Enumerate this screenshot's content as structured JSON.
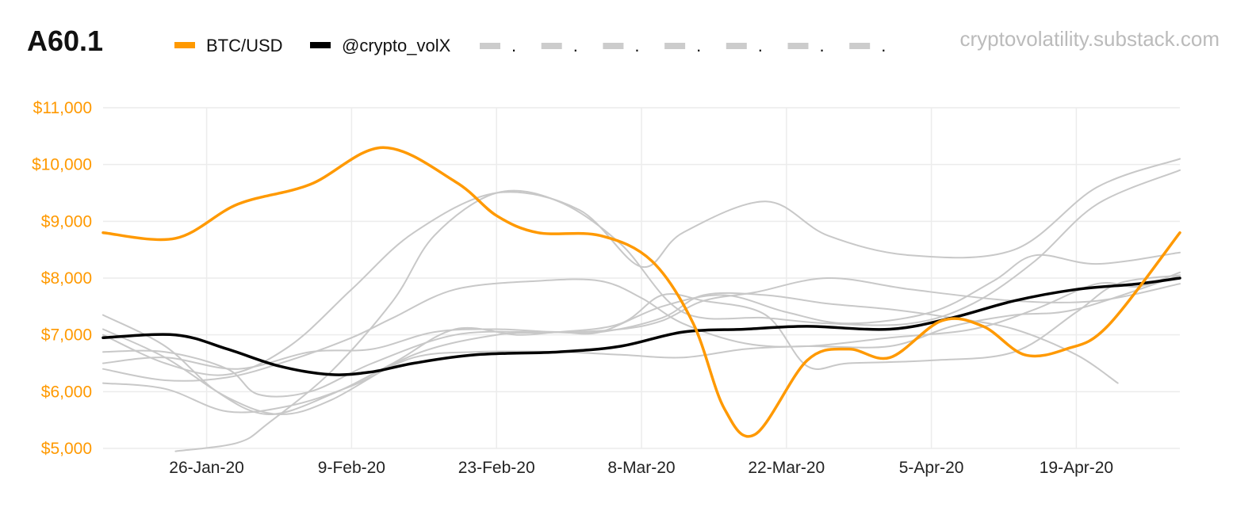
{
  "chart_data": {
    "type": "line",
    "title": "A60.1",
    "source": "cryptovolatility.substack.com",
    "x_range": [
      0,
      104
    ],
    "ylim": [
      5000,
      11000
    ],
    "yticks": [
      5000,
      6000,
      7000,
      8000,
      9000,
      10000,
      11000
    ],
    "ytick_labels": [
      "$5,000",
      "$6,000",
      "$7,000",
      "$8,000",
      "$9,000",
      "$10,000",
      "$11,000"
    ],
    "xticks": [
      {
        "x": 10,
        "label": "26-Jan-20"
      },
      {
        "x": 24,
        "label": "9-Feb-20"
      },
      {
        "x": 38,
        "label": "23-Feb-20"
      },
      {
        "x": 52,
        "label": "8-Mar-20"
      },
      {
        "x": 66,
        "label": "22-Mar-20"
      },
      {
        "x": 80,
        "label": "5-Apr-20"
      },
      {
        "x": 94,
        "label": "19-Apr-20"
      }
    ],
    "grid": true,
    "legend": [
      "BTC/USD",
      "@crypto_volX",
      ".",
      ".",
      ".",
      ".",
      ".",
      ".",
      "."
    ],
    "series": [
      {
        "name": "grey-1",
        "role": "other",
        "color": "#c8c8c8",
        "points": [
          [
            0,
            6500
          ],
          [
            6,
            6600
          ],
          [
            13,
            6400
          ],
          [
            20,
            6700
          ],
          [
            26,
            6750
          ],
          [
            32,
            7050
          ],
          [
            38,
            7100
          ],
          [
            44,
            7050
          ],
          [
            50,
            7100
          ],
          [
            54,
            7250
          ],
          [
            58,
            7600
          ],
          [
            63,
            7750
          ],
          [
            70,
            8000
          ],
          [
            78,
            7800
          ],
          [
            88,
            7600
          ],
          [
            96,
            7600
          ],
          [
            104,
            7900
          ]
        ]
      },
      {
        "name": "grey-2",
        "role": "other",
        "color": "#c8c8c8",
        "points": [
          [
            0,
            6700
          ],
          [
            6,
            6700
          ],
          [
            12,
            6400
          ],
          [
            15,
            5950
          ],
          [
            20,
            6000
          ],
          [
            26,
            6500
          ],
          [
            34,
            7000
          ],
          [
            42,
            7050
          ],
          [
            48,
            7050
          ],
          [
            54,
            7300
          ],
          [
            58,
            7700
          ],
          [
            64,
            7700
          ],
          [
            70,
            7550
          ],
          [
            76,
            7450
          ],
          [
            82,
            7300
          ],
          [
            88,
            7100
          ],
          [
            94,
            6650
          ],
          [
            98,
            6150
          ]
        ]
      },
      {
        "name": "grey-3",
        "role": "other",
        "color": "#c8c8c8",
        "points": [
          [
            0,
            6150
          ],
          [
            6,
            6050
          ],
          [
            12,
            5650
          ],
          [
            18,
            5750
          ],
          [
            24,
            6100
          ],
          [
            30,
            6600
          ],
          [
            36,
            6700
          ],
          [
            44,
            6700
          ],
          [
            50,
            6650
          ],
          [
            56,
            6600
          ],
          [
            62,
            6750
          ],
          [
            68,
            6800
          ],
          [
            76,
            6800
          ],
          [
            82,
            7150
          ],
          [
            88,
            7350
          ],
          [
            94,
            7450
          ],
          [
            104,
            8050
          ]
        ]
      },
      {
        "name": "grey-4",
        "role": "other",
        "color": "#c8c8c8",
        "points": [
          [
            0,
            6400
          ],
          [
            6,
            6200
          ],
          [
            12,
            6250
          ],
          [
            18,
            6550
          ],
          [
            24,
            6950
          ],
          [
            28,
            7300
          ],
          [
            34,
            7800
          ],
          [
            42,
            7950
          ],
          [
            48,
            7950
          ],
          [
            52,
            7650
          ],
          [
            56,
            7200
          ],
          [
            62,
            6850
          ],
          [
            68,
            6800
          ],
          [
            76,
            6950
          ],
          [
            84,
            7100
          ],
          [
            90,
            7450
          ],
          [
            96,
            7900
          ],
          [
            100,
            7850
          ],
          [
            104,
            8100
          ]
        ]
      },
      {
        "name": "grey-5",
        "role": "other",
        "color": "#c8c8c8",
        "points": [
          [
            0,
            7350
          ],
          [
            6,
            6800
          ],
          [
            11,
            6000
          ],
          [
            16,
            5600
          ],
          [
            22,
            5950
          ],
          [
            28,
            6500
          ],
          [
            34,
            7100
          ],
          [
            40,
            7000
          ],
          [
            44,
            7050
          ],
          [
            48,
            7050
          ],
          [
            54,
            7500
          ],
          [
            60,
            7700
          ],
          [
            66,
            7400
          ],
          [
            72,
            7200
          ],
          [
            80,
            7400
          ],
          [
            86,
            7950
          ],
          [
            90,
            8400
          ],
          [
            96,
            8250
          ],
          [
            104,
            8450
          ]
        ]
      },
      {
        "name": "grey-6",
        "role": "other",
        "color": "#c8c8c8",
        "points": [
          [
            0,
            7100
          ],
          [
            6,
            6600
          ],
          [
            12,
            5900
          ],
          [
            17,
            5600
          ],
          [
            22,
            5850
          ],
          [
            30,
            6650
          ],
          [
            38,
            7000
          ],
          [
            44,
            7050
          ],
          [
            50,
            7200
          ],
          [
            54,
            7700
          ],
          [
            58,
            7600
          ],
          [
            64,
            7350
          ],
          [
            68,
            6450
          ],
          [
            72,
            6500
          ],
          [
            80,
            6550
          ],
          [
            88,
            6700
          ],
          [
            94,
            7400
          ],
          [
            98,
            7900
          ],
          [
            104,
            8050
          ]
        ]
      },
      {
        "name": "grey-7",
        "role": "other",
        "color": "#c8c8c8",
        "points": [
          [
            7,
            4950
          ],
          [
            13,
            5100
          ],
          [
            16,
            5450
          ],
          [
            22,
            6350
          ],
          [
            28,
            7600
          ],
          [
            32,
            8750
          ],
          [
            38,
            9500
          ],
          [
            44,
            9350
          ],
          [
            50,
            8600
          ],
          [
            56,
            7400
          ],
          [
            64,
            7300
          ],
          [
            70,
            7200
          ],
          [
            78,
            7200
          ],
          [
            84,
            7550
          ],
          [
            90,
            8300
          ],
          [
            96,
            9300
          ],
          [
            104,
            9900
          ]
        ]
      },
      {
        "name": "grey-8",
        "role": "other",
        "color": "#c8c8c8",
        "points": [
          [
            0,
            7000
          ],
          [
            6,
            6500
          ],
          [
            12,
            6300
          ],
          [
            18,
            6800
          ],
          [
            24,
            7800
          ],
          [
            30,
            8800
          ],
          [
            38,
            9500
          ],
          [
            46,
            9200
          ],
          [
            52,
            8200
          ],
          [
            56,
            8800
          ],
          [
            64,
            9350
          ],
          [
            70,
            8750
          ],
          [
            78,
            8400
          ],
          [
            88,
            8500
          ],
          [
            96,
            9600
          ],
          [
            104,
            10100
          ]
        ]
      },
      {
        "name": "@crypto_volX",
        "role": "volx",
        "color": "#000000",
        "points": [
          [
            0,
            6950
          ],
          [
            7,
            7000
          ],
          [
            12,
            6750
          ],
          [
            17,
            6450
          ],
          [
            22,
            6300
          ],
          [
            26,
            6350
          ],
          [
            30,
            6500
          ],
          [
            36,
            6650
          ],
          [
            44,
            6700
          ],
          [
            50,
            6800
          ],
          [
            56,
            7050
          ],
          [
            62,
            7100
          ],
          [
            68,
            7150
          ],
          [
            76,
            7100
          ],
          [
            82,
            7300
          ],
          [
            88,
            7600
          ],
          [
            94,
            7800
          ],
          [
            100,
            7900
          ],
          [
            104,
            8000
          ]
        ]
      },
      {
        "name": "BTC/USD",
        "role": "btc",
        "color": "#ff9900",
        "points": [
          [
            0,
            8800
          ],
          [
            7,
            8700
          ],
          [
            13,
            9300
          ],
          [
            20,
            9650
          ],
          [
            27,
            10300
          ],
          [
            34,
            9700
          ],
          [
            38,
            9100
          ],
          [
            42,
            8800
          ],
          [
            48,
            8750
          ],
          [
            53,
            8300
          ],
          [
            57,
            7200
          ],
          [
            60,
            5700
          ],
          [
            63,
            5250
          ],
          [
            68,
            6550
          ],
          [
            72,
            6750
          ],
          [
            76,
            6600
          ],
          [
            81,
            7250
          ],
          [
            85,
            7150
          ],
          [
            89,
            6650
          ],
          [
            93,
            6750
          ],
          [
            97,
            7150
          ],
          [
            104,
            8800
          ]
        ]
      }
    ]
  }
}
